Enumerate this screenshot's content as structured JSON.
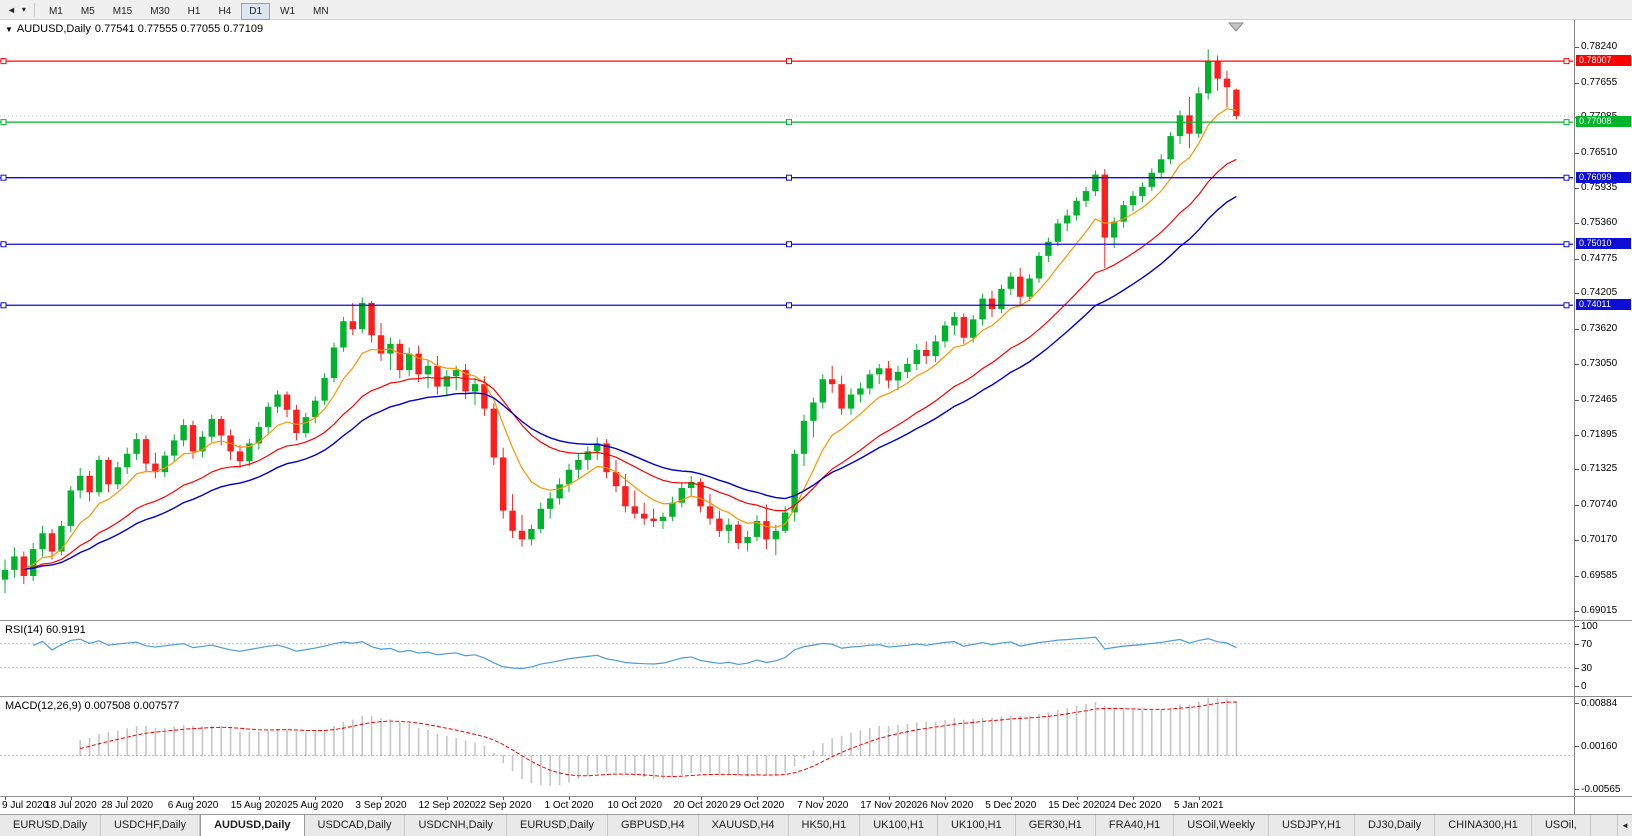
{
  "toolbar": {
    "icons": [
      {
        "name": "chart-shift-icon",
        "glyph": "◄"
      },
      {
        "name": "dropdown-icon",
        "glyph": "▾"
      }
    ],
    "timeframes": [
      {
        "label": "M1",
        "active": false
      },
      {
        "label": "M5",
        "active": false
      },
      {
        "label": "M15",
        "active": false
      },
      {
        "label": "M30",
        "active": false
      },
      {
        "label": "H1",
        "active": false
      },
      {
        "label": "H4",
        "active": false
      },
      {
        "label": "D1",
        "active": true
      },
      {
        "label": "W1",
        "active": false
      },
      {
        "label": "MN",
        "active": false
      }
    ]
  },
  "chart": {
    "collapse_icon": "▼",
    "title": "AUDUSD,Daily",
    "ohlc": "0.77541 0.77555 0.77055 0.77109",
    "price_axis": [
      "0.78240",
      "0.77655",
      "0.77085",
      "0.76510",
      "0.75935",
      "0.75360",
      "0.74775",
      "0.74205",
      "0.73620",
      "0.73050",
      "0.72465",
      "0.71895",
      "0.71325",
      "0.70740",
      "0.70170",
      "0.69585",
      "0.69015"
    ],
    "hlines": [
      {
        "price": 0.78007,
        "label": "0.78007",
        "color": "#ff0000"
      },
      {
        "price": 0.77008,
        "label": "0.77008",
        "color": "#00b42a"
      },
      {
        "price": 0.76099,
        "label": "0.76099",
        "color": "#0d0dd6"
      },
      {
        "price": 0.7501,
        "label": "0.75010",
        "color": "#0d0dd6"
      },
      {
        "price": 0.74011,
        "label": "0.74011",
        "color": "#0d0dd6"
      }
    ],
    "bid_price": 0.77109
  },
  "colors": {
    "bull": "#00b32c",
    "bear": "#fe1e1e",
    "ma_fast": "#ff9500",
    "ma_mid": "#ff0000",
    "ma_slow": "#0000c8",
    "rsi_line": "#4f9bd8",
    "macd_hist": "#8c8c8c",
    "macd_signal": "#ff0000",
    "level_dash": "#a9c3dc"
  },
  "rsi": {
    "label": "RSI(14) 60.9191",
    "axis": [
      "100",
      "70",
      "30",
      "0"
    ],
    "levels": [
      70,
      30
    ]
  },
  "macd": {
    "label": "MACD(12,26,9) 0.007508 0.007577",
    "axis": [
      "0.00884",
      "0.00160",
      "-0.00565"
    ]
  },
  "tabbar": {
    "active_index": 2,
    "scroll_icon": "◄",
    "tabs": [
      "EURUSD,Daily",
      "USDCHF,Daily",
      "AUDUSD,Daily",
      "USDCAD,Daily",
      "USDCNH,Daily",
      "EURUSD,Daily",
      "GBPUSD,H4",
      "XAUUSD,H4",
      "HK50,H1",
      "UK100,H1",
      "UK100,H1",
      "GER30,H1",
      "FRA40,H1",
      "USOil,Weekly",
      "USDJPY,H1",
      "DJ30,Daily",
      "CHINA300,H1",
      "USOil,"
    ]
  },
  "chart_data": {
    "type": "candlestick",
    "symbol": "AUDUSD",
    "timeframe": "Daily",
    "ohlc_current": {
      "open": "0.77541",
      "high": "0.77555",
      "low": "0.77055",
      "close": "0.77109"
    },
    "y_axis_range": [
      0.6886,
      0.7868
    ],
    "x_labels": [
      "9 Jul 2020",
      "18 Jul 2020",
      "28 Jul 2020",
      "6 Aug 2020",
      "15 Aug 2020",
      "25 Aug 2020",
      "3 Sep 2020",
      "12 Sep 2020",
      "22 Sep 2020",
      "1 Oct 2020",
      "10 Oct 2020",
      "20 Oct 2020",
      "29 Oct 2020",
      "7 Nov 2020",
      "17 Nov 2020",
      "26 Nov 2020",
      "5 Dec 2020",
      "15 Dec 2020",
      "24 Dec 2020",
      "5 Jan 2021"
    ],
    "candles": [
      [
        0.6952,
        0.6985,
        0.693,
        0.6968
      ],
      [
        0.6968,
        0.7005,
        0.6955,
        0.699
      ],
      [
        0.699,
        0.6998,
        0.6945,
        0.6958
      ],
      [
        0.6958,
        0.7012,
        0.695,
        0.7002
      ],
      [
        0.7002,
        0.704,
        0.699,
        0.7028
      ],
      [
        0.7028,
        0.7035,
        0.6985,
        0.6998
      ],
      [
        0.6998,
        0.7048,
        0.6992,
        0.704
      ],
      [
        0.704,
        0.7105,
        0.703,
        0.7098
      ],
      [
        0.7098,
        0.7135,
        0.7085,
        0.7122
      ],
      [
        0.7122,
        0.713,
        0.708,
        0.7095
      ],
      [
        0.7095,
        0.7155,
        0.7088,
        0.7148
      ],
      [
        0.7148,
        0.7152,
        0.7095,
        0.7108
      ],
      [
        0.7108,
        0.7145,
        0.71,
        0.7136
      ],
      [
        0.7136,
        0.7168,
        0.7125,
        0.7158
      ],
      [
        0.7158,
        0.7192,
        0.7148,
        0.7182
      ],
      [
        0.7182,
        0.7188,
        0.7128,
        0.7142
      ],
      [
        0.7142,
        0.716,
        0.7118,
        0.7128
      ],
      [
        0.7128,
        0.7162,
        0.712,
        0.7155
      ],
      [
        0.7155,
        0.719,
        0.7145,
        0.718
      ],
      [
        0.718,
        0.7215,
        0.717,
        0.7205
      ],
      [
        0.7205,
        0.7212,
        0.715,
        0.7162
      ],
      [
        0.7162,
        0.7195,
        0.7152,
        0.7186
      ],
      [
        0.7186,
        0.7222,
        0.7178,
        0.7215
      ],
      [
        0.7215,
        0.722,
        0.7172,
        0.7188
      ],
      [
        0.7188,
        0.7198,
        0.7148,
        0.7162
      ],
      [
        0.7162,
        0.7172,
        0.7135,
        0.7146
      ],
      [
        0.7146,
        0.7182,
        0.7138,
        0.7175
      ],
      [
        0.7175,
        0.721,
        0.7165,
        0.7202
      ],
      [
        0.7202,
        0.7242,
        0.7192,
        0.7235
      ],
      [
        0.7235,
        0.7262,
        0.7225,
        0.7255
      ],
      [
        0.7255,
        0.726,
        0.7218,
        0.723
      ],
      [
        0.723,
        0.7238,
        0.718,
        0.7192
      ],
      [
        0.7192,
        0.7225,
        0.7185,
        0.7218
      ],
      [
        0.7218,
        0.7252,
        0.7208,
        0.7245
      ],
      [
        0.7245,
        0.729,
        0.7238,
        0.7282
      ],
      [
        0.7282,
        0.734,
        0.7275,
        0.7332
      ],
      [
        0.7332,
        0.7382,
        0.7325,
        0.7375
      ],
      [
        0.7375,
        0.7405,
        0.7352,
        0.7362
      ],
      [
        0.7362,
        0.7414,
        0.7355,
        0.7405
      ],
      [
        0.7405,
        0.7408,
        0.734,
        0.7352
      ],
      [
        0.7352,
        0.7372,
        0.731,
        0.7322
      ],
      [
        0.7322,
        0.7348,
        0.7295,
        0.7338
      ],
      [
        0.7338,
        0.7345,
        0.7282,
        0.7295
      ],
      [
        0.7295,
        0.7332,
        0.7285,
        0.7322
      ],
      [
        0.7322,
        0.7335,
        0.7275,
        0.7288
      ],
      [
        0.7288,
        0.7312,
        0.7265,
        0.7302
      ],
      [
        0.7302,
        0.7318,
        0.7255,
        0.7268
      ],
      [
        0.7268,
        0.7295,
        0.7252,
        0.7285
      ],
      [
        0.7285,
        0.7302,
        0.7262,
        0.7295
      ],
      [
        0.7295,
        0.7305,
        0.7248,
        0.726
      ],
      [
        0.726,
        0.7282,
        0.7238,
        0.7272
      ],
      [
        0.7272,
        0.7285,
        0.722,
        0.7232
      ],
      [
        0.7232,
        0.724,
        0.714,
        0.7152
      ],
      [
        0.7152,
        0.7168,
        0.7052,
        0.7065
      ],
      [
        0.7065,
        0.7092,
        0.702,
        0.7032
      ],
      [
        0.7032,
        0.7058,
        0.7006,
        0.7018
      ],
      [
        0.7018,
        0.7042,
        0.7008,
        0.7035
      ],
      [
        0.7035,
        0.7078,
        0.7028,
        0.7068
      ],
      [
        0.7068,
        0.7095,
        0.7052,
        0.7085
      ],
      [
        0.7085,
        0.7118,
        0.7075,
        0.7108
      ],
      [
        0.7108,
        0.7142,
        0.7095,
        0.7132
      ],
      [
        0.7132,
        0.7158,
        0.7118,
        0.7148
      ],
      [
        0.7148,
        0.717,
        0.7132,
        0.7162
      ],
      [
        0.7162,
        0.7185,
        0.7148,
        0.7175
      ],
      [
        0.7175,
        0.7182,
        0.7118,
        0.7128
      ],
      [
        0.7128,
        0.7148,
        0.7095,
        0.7105
      ],
      [
        0.7105,
        0.7125,
        0.7062,
        0.7072
      ],
      [
        0.7072,
        0.7098,
        0.7052,
        0.706
      ],
      [
        0.706,
        0.7078,
        0.7042,
        0.7052
      ],
      [
        0.7052,
        0.7068,
        0.7038,
        0.7048
      ],
      [
        0.7048,
        0.7062,
        0.7035,
        0.7055
      ],
      [
        0.7055,
        0.7088,
        0.7048,
        0.7078
      ],
      [
        0.7078,
        0.7112,
        0.707,
        0.7102
      ],
      [
        0.7102,
        0.7122,
        0.7088,
        0.7112
      ],
      [
        0.7112,
        0.7118,
        0.7062,
        0.7072
      ],
      [
        0.7072,
        0.7092,
        0.7042,
        0.7052
      ],
      [
        0.7052,
        0.7065,
        0.7022,
        0.7032
      ],
      [
        0.7032,
        0.7052,
        0.7012,
        0.7042
      ],
      [
        0.7042,
        0.7048,
        0.7002,
        0.7012
      ],
      [
        0.7012,
        0.7032,
        0.6998,
        0.7022
      ],
      [
        0.7022,
        0.7058,
        0.7015,
        0.7048
      ],
      [
        0.7048,
        0.7075,
        0.7002,
        0.7018
      ],
      [
        0.7018,
        0.7042,
        0.6992,
        0.7032
      ],
      [
        0.7032,
        0.7072,
        0.7028,
        0.7062
      ],
      [
        0.7062,
        0.7165,
        0.7048,
        0.7158
      ],
      [
        0.7158,
        0.7222,
        0.7138,
        0.7212
      ],
      [
        0.7212,
        0.725,
        0.7185,
        0.7242
      ],
      [
        0.7242,
        0.7288,
        0.7232,
        0.728
      ],
      [
        0.728,
        0.7302,
        0.7258,
        0.7272
      ],
      [
        0.7272,
        0.7286,
        0.7222,
        0.7232
      ],
      [
        0.7232,
        0.7265,
        0.7222,
        0.7255
      ],
      [
        0.7255,
        0.7275,
        0.7242,
        0.7265
      ],
      [
        0.7265,
        0.7295,
        0.7255,
        0.7288
      ],
      [
        0.7288,
        0.7305,
        0.7272,
        0.7298
      ],
      [
        0.7298,
        0.731,
        0.7265,
        0.7278
      ],
      [
        0.7278,
        0.7302,
        0.7262,
        0.7292
      ],
      [
        0.7292,
        0.7315,
        0.7282,
        0.7305
      ],
      [
        0.7305,
        0.7338,
        0.7295,
        0.7328
      ],
      [
        0.7328,
        0.7342,
        0.7305,
        0.7318
      ],
      [
        0.7318,
        0.7352,
        0.7308,
        0.7342
      ],
      [
        0.7342,
        0.7375,
        0.7332,
        0.7368
      ],
      [
        0.7368,
        0.739,
        0.7352,
        0.7382
      ],
      [
        0.7382,
        0.7388,
        0.7338,
        0.7348
      ],
      [
        0.7348,
        0.7385,
        0.734,
        0.7378
      ],
      [
        0.7378,
        0.742,
        0.7368,
        0.7412
      ],
      [
        0.7412,
        0.7425,
        0.7382,
        0.7395
      ],
      [
        0.7395,
        0.7435,
        0.7388,
        0.7428
      ],
      [
        0.7428,
        0.7455,
        0.7418,
        0.7448
      ],
      [
        0.7448,
        0.7462,
        0.7402,
        0.7415
      ],
      [
        0.7415,
        0.7452,
        0.7408,
        0.7445
      ],
      [
        0.7445,
        0.7488,
        0.7438,
        0.7482
      ],
      [
        0.7482,
        0.7512,
        0.7472,
        0.7505
      ],
      [
        0.7505,
        0.7542,
        0.7498,
        0.7535
      ],
      [
        0.7535,
        0.7558,
        0.7522,
        0.7548
      ],
      [
        0.7548,
        0.7578,
        0.754,
        0.7572
      ],
      [
        0.7572,
        0.7595,
        0.7562,
        0.7588
      ],
      [
        0.7588,
        0.7622,
        0.758,
        0.7615
      ],
      [
        0.7615,
        0.7624,
        0.7462,
        0.7512
      ],
      [
        0.7512,
        0.7545,
        0.7495,
        0.7538
      ],
      [
        0.7538,
        0.7572,
        0.7528,
        0.7565
      ],
      [
        0.7565,
        0.7588,
        0.7555,
        0.758
      ],
      [
        0.758,
        0.7602,
        0.757,
        0.7595
      ],
      [
        0.7595,
        0.7625,
        0.7588,
        0.7618
      ],
      [
        0.7618,
        0.7648,
        0.7608,
        0.764
      ],
      [
        0.764,
        0.7685,
        0.7632,
        0.7678
      ],
      [
        0.7678,
        0.772,
        0.7665,
        0.7712
      ],
      [
        0.7712,
        0.7742,
        0.7658,
        0.7682
      ],
      [
        0.7682,
        0.7758,
        0.7675,
        0.7748
      ],
      [
        0.7748,
        0.782,
        0.7738,
        0.78
      ],
      [
        0.78,
        0.781,
        0.7752,
        0.7772
      ],
      [
        0.7772,
        0.7785,
        0.7725,
        0.7758
      ],
      [
        0.77541,
        0.77555,
        0.77055,
        0.77109
      ]
    ]
  }
}
